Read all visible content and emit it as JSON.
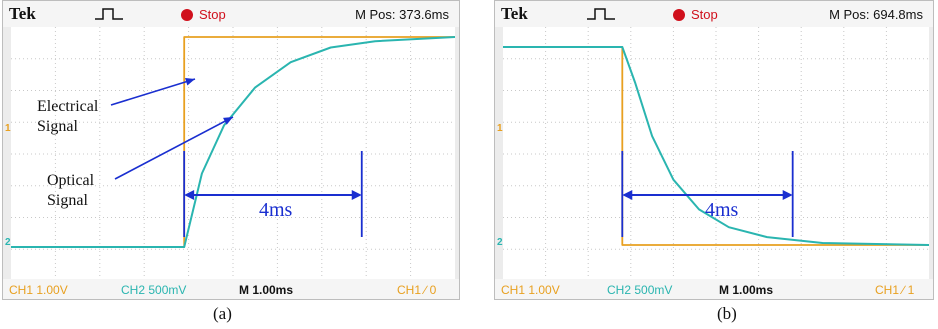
{
  "panels": [
    {
      "brand": "Tek",
      "run_state": "Stop",
      "m_pos": "M Pos: 373.6ms",
      "ch1_scale": "CH1  1.00V",
      "ch2_scale": "CH2  500mV",
      "time_scale": "M 1.00ms",
      "trigger": "CH1  ∕  0",
      "ch1_marker": "1",
      "ch2_marker": "2",
      "caption": "(a)",
      "label_electrical": [
        "Electrical",
        "Signal"
      ],
      "label_optical": [
        "Optical",
        "Signal"
      ],
      "measurement": "4ms"
    },
    {
      "brand": "Tek",
      "run_state": "Stop",
      "m_pos": "M Pos: 694.8ms",
      "ch1_scale": "CH1  1.00V",
      "ch2_scale": "CH2  500mV",
      "time_scale": "M 1.00ms",
      "trigger": "CH1  ∕  1",
      "ch1_marker": "1",
      "ch2_marker": "2",
      "caption": "(b)",
      "measurement": "4ms"
    }
  ],
  "colors": {
    "ch1": "#e8a020",
    "ch2": "#2ab5b0",
    "annotation": "#1a2fd0",
    "stop": "#d0101c"
  },
  "chart_data": [
    {
      "type": "line",
      "x_unit": "ms",
      "x_range": [
        0,
        10
      ],
      "series": [
        {
          "channel": "CH1",
          "values_x": [
            0,
            3.9,
            3.9,
            10
          ],
          "values_y": [
            0,
            0,
            1,
            1
          ]
        },
        {
          "channel": "CH2",
          "values_x": [
            0,
            3.9,
            4.3,
            4.8,
            5.5,
            6.3,
            7.2,
            8.2,
            10
          ],
          "values_y": [
            0,
            0,
            0.35,
            0.58,
            0.76,
            0.88,
            0.95,
            0.98,
            1
          ]
        }
      ],
      "annotations": [
        {
          "text": "4ms",
          "from_ms": 3.9,
          "to_ms": 7.9
        }
      ]
    },
    {
      "type": "line",
      "x_unit": "ms",
      "x_range": [
        0,
        10
      ],
      "series": [
        {
          "channel": "CH1",
          "values_x": [
            0,
            2.8,
            2.8,
            10
          ],
          "values_y": [
            1,
            1,
            0,
            0
          ]
        },
        {
          "channel": "CH2",
          "values_x": [
            0,
            2.8,
            3.1,
            3.5,
            4.0,
            4.6,
            5.3,
            6.2,
            7.5,
            10
          ],
          "values_y": [
            1,
            1,
            0.82,
            0.55,
            0.33,
            0.18,
            0.09,
            0.04,
            0.01,
            0
          ]
        }
      ],
      "annotations": [
        {
          "text": "4ms",
          "from_ms": 2.8,
          "to_ms": 6.8
        }
      ]
    }
  ]
}
